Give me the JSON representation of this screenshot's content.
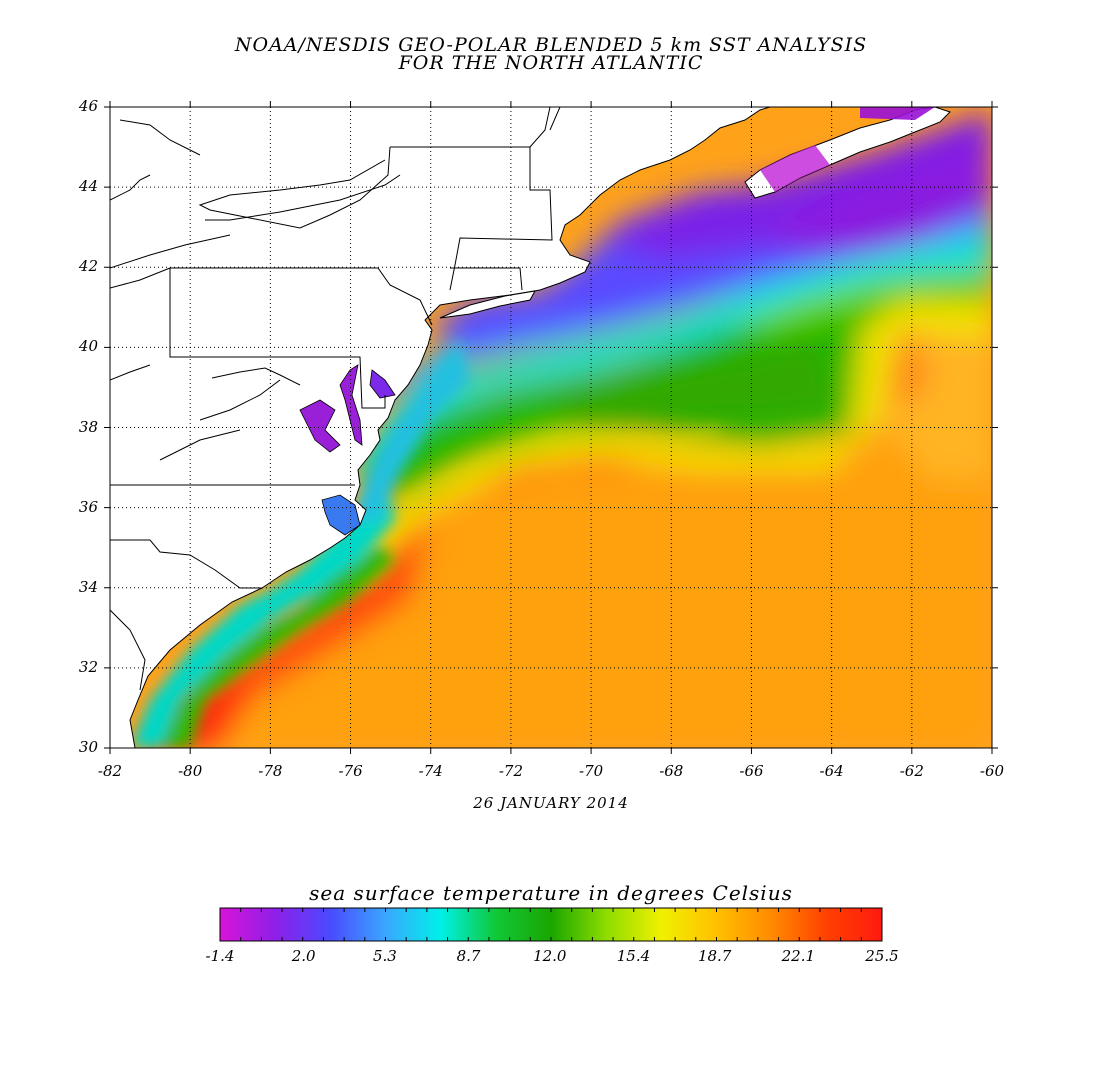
{
  "title_line1": "NOAA/NESDIS GEO-POLAR BLENDED 5 km SST ANALYSIS",
  "title_line2": "FOR THE NORTH ATLANTIC",
  "date": "26 JANUARY 2014",
  "colorbar": {
    "title": "sea surface temperature in degrees Celsius",
    "range": [
      -1.4,
      25.5
    ],
    "tick_labels": [
      "-1.4",
      "2.0",
      "5.3",
      "8.7",
      "12.0",
      "15.4",
      "18.7",
      "22.1",
      "25.5"
    ],
    "colors": [
      "#d814d8",
      "#8f1fe8",
      "#4a4aff",
      "#3aa6ff",
      "#00f0e8",
      "#10c838",
      "#1aa600",
      "#8edc00",
      "#f0f000",
      "#ffc000",
      "#ff8a00",
      "#ff4000",
      "#ff1a10"
    ]
  },
  "map": {
    "lon_range": [
      -82,
      -60
    ],
    "lat_range": [
      30,
      46
    ],
    "lon_ticks": [
      "-82",
      "-80",
      "-78",
      "-76",
      "-74",
      "-72",
      "-70",
      "-68",
      "-66",
      "-64",
      "-62",
      "-60"
    ],
    "lat_ticks": [
      "30",
      "32",
      "34",
      "36",
      "38",
      "40",
      "42",
      "44",
      "46"
    ],
    "grid": "dotted, every 2 degrees",
    "land_color": "#ffffff",
    "border_color": "#000000"
  }
}
